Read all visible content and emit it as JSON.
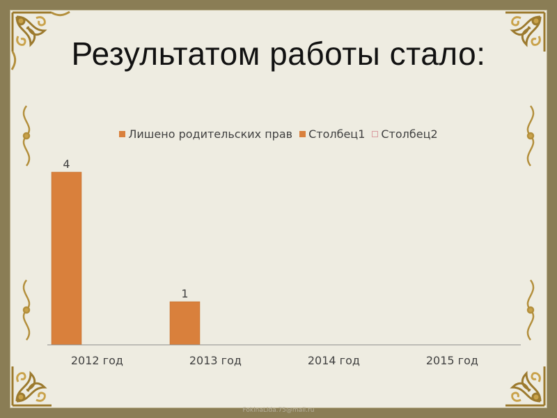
{
  "slide": {
    "title": "Результатом работы стало:",
    "footer": "FokinaLida.75@mail.ru"
  },
  "chart_data": {
    "type": "bar",
    "categories": [
      "2012 год",
      "2013 год",
      "2014 год",
      "2015 год"
    ],
    "series": [
      {
        "name": "Лишено родительских прав",
        "values": [
          4,
          1,
          null,
          null
        ],
        "color": "#d9803c",
        "data_labels": [
          "4",
          "1",
          "",
          ""
        ]
      },
      {
        "name": "Столбец1",
        "values": [
          null,
          null,
          null,
          null
        ],
        "color": "#d9803c"
      },
      {
        "name": "Столбец2",
        "values": [
          null,
          null,
          null,
          null
        ],
        "color": "#d99ca0"
      }
    ],
    "ylim": [
      0,
      4
    ],
    "legend": "top",
    "grid": false
  }
}
